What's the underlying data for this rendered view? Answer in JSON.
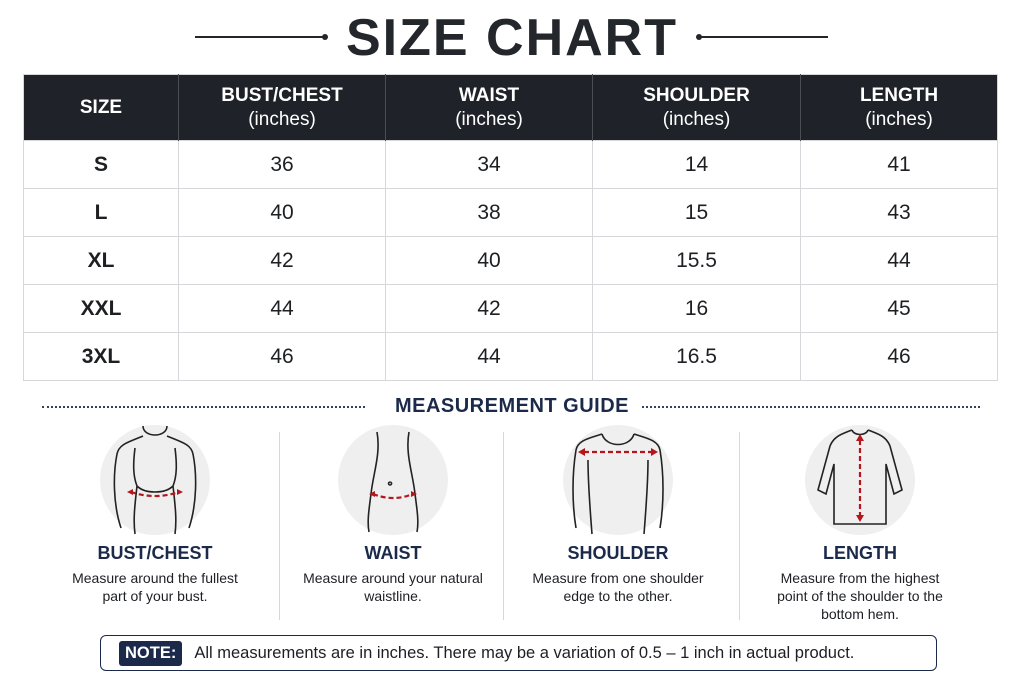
{
  "title": "SIZE CHART",
  "table": {
    "header": [
      {
        "label": "SIZE"
      },
      {
        "label": "BUST/CHEST",
        "unit": "(inches)"
      },
      {
        "label": "WAIST",
        "unit": "(inches)"
      },
      {
        "label": "SHOULDER",
        "unit": "(inches)"
      },
      {
        "label": "LENGTH",
        "unit": "(inches)"
      }
    ],
    "rows": [
      [
        "S",
        36,
        34,
        14,
        41
      ],
      [
        "L",
        40,
        38,
        15,
        43
      ],
      [
        "XL",
        42,
        40,
        15.5,
        44
      ],
      [
        "XXL",
        44,
        42,
        16,
        45
      ],
      [
        "3XL",
        46,
        44,
        16.5,
        46
      ]
    ]
  },
  "guide": {
    "title": "MEASUREMENT GUIDE",
    "items": [
      {
        "label": "BUST/CHEST",
        "text": "Measure around the fullest part of your bust."
      },
      {
        "label": "WAIST",
        "text": "Measure around your natural waistline."
      },
      {
        "label": "SHOULDER",
        "text": "Measure from one shoulder edge to the other."
      },
      {
        "label": "LENGTH",
        "text": "Measure from the highest point of the shoulder to the bottom hem."
      }
    ]
  },
  "note": {
    "label": "NOTE:",
    "text": "All measurements are in inches. There may be a variation of 0.5 – 1 inch in actual product."
  }
}
